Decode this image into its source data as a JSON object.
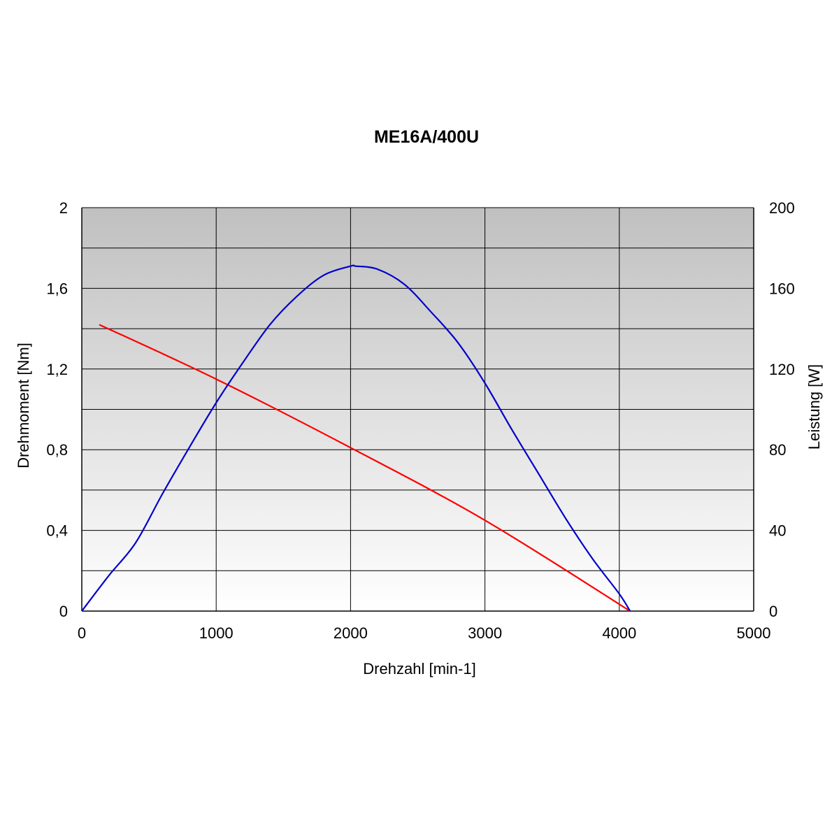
{
  "chart_data": {
    "type": "line",
    "title": "ME16A/400U",
    "xlabel": "Drehzahl [min-1]",
    "ylabel_left": "Drehmoment [Nm]",
    "ylabel_right": "Leistung [W]",
    "xlim": [
      0,
      5000
    ],
    "ylim_left": [
      0,
      2
    ],
    "ylim_right": [
      0,
      200
    ],
    "x_ticks": [
      "0",
      "1000",
      "2000",
      "3000",
      "4000",
      "5000"
    ],
    "y_left_ticks": [
      "0",
      "0,4",
      "0,8",
      "1,2",
      "1,6",
      "2"
    ],
    "y_right_ticks": [
      "0",
      "40",
      "80",
      "120",
      "160",
      "200"
    ],
    "grid": true,
    "plot_background": [
      "#c0c0c0",
      "#ffffff"
    ],
    "series": [
      {
        "axis": "left",
        "color": "#ff0000",
        "x": [
          130,
          1000,
          2000,
          3000,
          4080
        ],
        "y": [
          1.42,
          1.15,
          0.81,
          0.45,
          0.0
        ]
      },
      {
        "axis": "right",
        "color": "#0000cc",
        "x": [
          0,
          200,
          400,
          600,
          800,
          1000,
          1200,
          1400,
          1600,
          1800,
          2000,
          2040,
          2200,
          2400,
          2600,
          2800,
          3000,
          3200,
          3400,
          3600,
          3800,
          4000,
          4080
        ],
        "y": [
          0,
          17.5,
          33.8,
          58.1,
          81.1,
          103.3,
          123.3,
          142.0,
          156.0,
          166.5,
          171.0,
          171.0,
          169.5,
          162.0,
          148.2,
          133.0,
          113.0,
          90.0,
          68.0,
          46.0,
          26.0,
          8.5,
          0
        ]
      }
    ]
  }
}
